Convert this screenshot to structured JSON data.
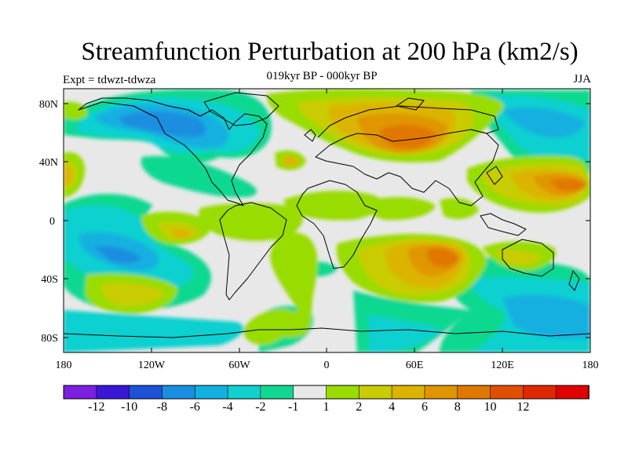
{
  "header": {
    "title": "Streamfunction Perturbation at 200 hPa (km2/s)",
    "subtitle": "019kyr BP - 000kyr BP",
    "left_label": "Expt = tdwzt-tdwza",
    "right_label": "JJA"
  },
  "map": {
    "lat_ticks": [
      "80N",
      "40N",
      "0",
      "40S",
      "80S"
    ],
    "lon_ticks": [
      "180",
      "120W",
      "60W",
      "0",
      "60E",
      "120E",
      "180"
    ]
  },
  "colorbar": {
    "colors": [
      "#7d1fe0",
      "#3a16d6",
      "#1d52d8",
      "#1a8ee0",
      "#12b0e0",
      "#10d0d0",
      "#10d890",
      "#e8e8e8",
      "#98dc00",
      "#c8cc00",
      "#dcb400",
      "#e09600",
      "#e07800",
      "#e05000",
      "#e02800",
      "#e00000"
    ],
    "labels": [
      "-12",
      "-10",
      "-8",
      "-6",
      "-4",
      "-2",
      "-1",
      "1",
      "2",
      "4",
      "6",
      "8",
      "10",
      "12"
    ]
  }
}
